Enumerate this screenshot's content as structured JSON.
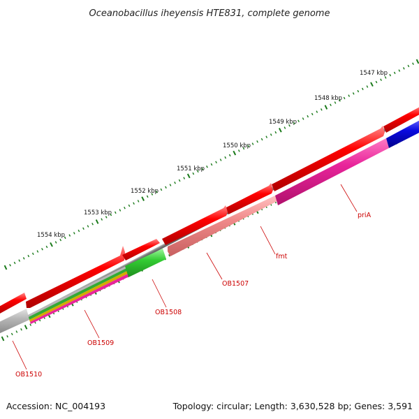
{
  "title": "Oceanobacillus iheyensis HTE831, complete genome",
  "footer": {
    "accession": "Accession: NC_004193",
    "summary": "Topology: circular; Length: 3,630,528 bp; Genes: 3,591"
  },
  "kbp_labels": [
    "1547 kbp",
    "1548 kbp",
    "1549 kbp",
    "1550 kbp",
    "1551 kbp",
    "1552 kbp",
    "1553 kbp",
    "1554 kbp"
  ],
  "gene_labels": [
    "priA",
    "fmt",
    "OB1507",
    "OB1508",
    "OB1509",
    "OB1510"
  ],
  "colors": {
    "backbone": "#7a7a7a",
    "cds_forward": "#ee0000",
    "priA": "#e8249a",
    "blue_gene": "#0a0ae0",
    "fmt": "#f08a8a",
    "OB1508": "#33cc33",
    "OB1509_stripes": [
      "#b6b6b6",
      "#33aa33",
      "#d4aa00",
      "#e8249a"
    ],
    "OB1510": "#b6b6b6",
    "ticks": "#1a7a1a",
    "label_text": "#cc0000"
  }
}
